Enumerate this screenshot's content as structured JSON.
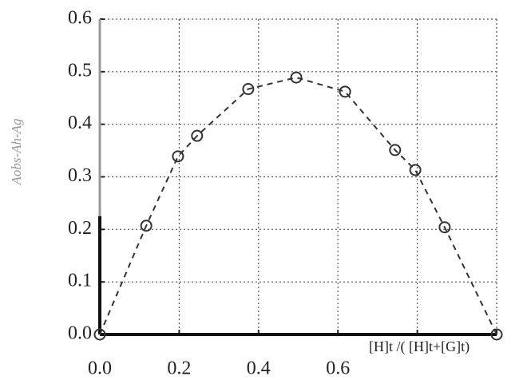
{
  "chart_data": {
    "type": "scatter",
    "x_label": "[H]t /( [H]t+[G]t)",
    "y_label": "Aobs-Ah-Ag",
    "xlim": [
      0,
      1
    ],
    "ylim": [
      0,
      0.6
    ],
    "xticks": [
      {
        "value": 0,
        "label": "0.0"
      },
      0.2,
      0.4,
      0.6,
      {
        "value": 0.8,
        "label": null
      },
      {
        "value": 1,
        "label": null
      }
    ],
    "yticks": [
      {
        "value": 0,
        "label": "0.0"
      },
      0.1,
      0.2,
      0.3,
      0.4,
      0.5,
      0.6
    ],
    "grid": true,
    "series": [
      {
        "color": "#333333",
        "x": [
          0,
          0.117,
          0.197,
          0.245,
          0.374,
          0.495,
          0.618,
          0.744,
          0.795,
          0.869,
          1
        ],
        "values": [
          0,
          0.207,
          0.339,
          0.378,
          0.467,
          0.489,
          0.462,
          0.351,
          0.313,
          0.204,
          0
        ]
      }
    ]
  }
}
